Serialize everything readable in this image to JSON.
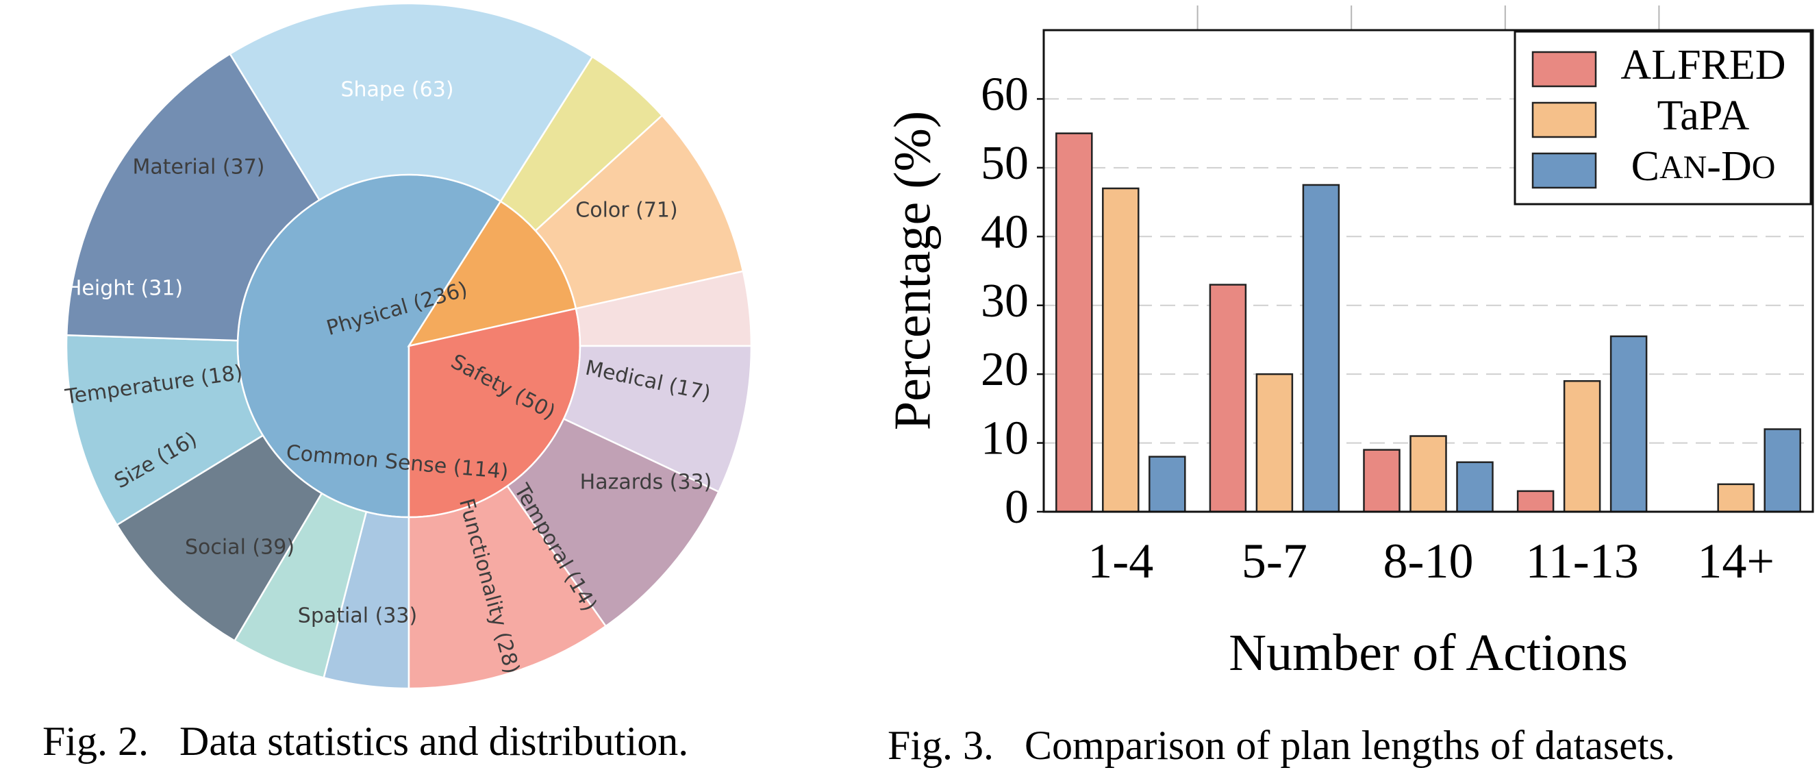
{
  "captions": {
    "fig2": "Fig. 2.   Data statistics and distribution.",
    "fig3": "Fig. 3.   Comparison of plan lengths of datasets."
  },
  "chart_data": [
    {
      "type": "sunburst",
      "inner": [
        {
          "label": "Physical (236)",
          "name": "Physical",
          "value": 236,
          "color": "#80B1D3"
        },
        {
          "label": "Safety (50)",
          "name": "Safety",
          "value": 50,
          "color": "#F4AA5C"
        },
        {
          "label": "Common Sense (114)",
          "name": "Common Sense",
          "value": 114,
          "color": "#F3806F"
        }
      ],
      "outer": [
        {
          "label": "Color (71)",
          "name": "Color",
          "value": 71,
          "parent": "Physical",
          "color": "#BCDDF0"
        },
        {
          "label": "Shape (63)",
          "name": "Shape",
          "value": 63,
          "parent": "Physical",
          "color": "#738EB2"
        },
        {
          "label": "Material (37)",
          "name": "Material",
          "value": 37,
          "parent": "Physical",
          "color": "#9DCEDF"
        },
        {
          "label": "Height (31)",
          "name": "Height",
          "value": 31,
          "parent": "Physical",
          "color": "#6E7F8E"
        },
        {
          "label": "Temperature (18)",
          "name": "Temperature",
          "value": 18,
          "parent": "Physical",
          "color": "#B4DED9"
        },
        {
          "label": "Size (16)",
          "name": "Size",
          "value": 16,
          "parent": "Physical",
          "color": "#A9C8E3"
        },
        {
          "label": "Social (39)",
          "name": "Social",
          "value": 39,
          "parent": "Common Sense",
          "color": "#F6AAA3"
        },
        {
          "label": "Spatial (33)",
          "name": "Spatial",
          "value": 33,
          "parent": "Common Sense",
          "color": "#C1A1B5"
        },
        {
          "label": "Functionality (28)",
          "name": "Functionality",
          "value": 28,
          "parent": "Common Sense",
          "color": "#DCD1E5"
        },
        {
          "label": "Temporal (14)",
          "name": "Temporal",
          "value": 14,
          "parent": "Common Sense",
          "color": "#F6E0E0"
        },
        {
          "label": "Hazards (33)",
          "name": "Hazards",
          "value": 33,
          "parent": "Safety",
          "color": "#FBCFA2"
        },
        {
          "label": "Medical (17)",
          "name": "Medical",
          "value": 17,
          "parent": "Safety",
          "color": "#EBE49A"
        }
      ]
    },
    {
      "type": "bar",
      "categories": [
        "1-4",
        "5-7",
        "8-10",
        "11-13",
        "14+"
      ],
      "series": [
        {
          "name": "ALFRED",
          "values": [
            55,
            33,
            9,
            3,
            0
          ],
          "color": "#E88982"
        },
        {
          "name": "TaPA",
          "values": [
            47,
            20,
            11,
            19,
            4
          ],
          "color": "#F5C08A"
        },
        {
          "name": "CAN-DO",
          "values": [
            8,
            47.5,
            7.2,
            25.5,
            12
          ],
          "color": "#6D97C2"
        }
      ],
      "xlabel": "Number of Actions",
      "ylabel": "Percentage (%)",
      "ylim": [
        0,
        70
      ],
      "yticks": [
        0,
        10,
        20,
        30,
        40,
        50,
        60
      ],
      "grid": "horizontal dashed",
      "legend_position": "top-right"
    }
  ]
}
